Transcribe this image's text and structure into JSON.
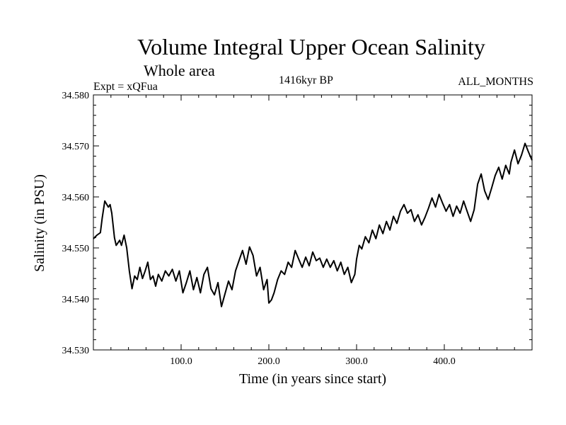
{
  "chart_data": {
    "type": "line",
    "title": "Volume Integral Upper Ocean Salinity",
    "subtitle": "Whole area",
    "experiment_label": "Expt = xQFua",
    "period_label": "1416kyr BP",
    "months_label": "ALL_MONTHS",
    "xlabel": "Time (in years since start)",
    "ylabel": "Salinity (in PSU)",
    "xlim": [
      0,
      500
    ],
    "ylim": [
      34.53,
      34.58
    ],
    "x_ticks": [
      100,
      200,
      300,
      400
    ],
    "x_tick_labels": [
      "100.0",
      "200.0",
      "300.0",
      "400.0"
    ],
    "y_ticks": [
      34.53,
      34.54,
      34.55,
      34.56,
      34.57,
      34.58
    ],
    "y_tick_labels": [
      "34.530",
      "34.540",
      "34.550",
      "34.560",
      "34.570",
      "34.580"
    ],
    "grid": false,
    "series": [
      {
        "name": "salinity",
        "x": [
          0,
          4,
          8,
          10,
          13,
          17,
          19,
          21,
          24,
          26,
          30,
          32,
          35,
          38,
          41,
          44,
          47,
          50,
          53,
          56,
          59,
          62,
          65,
          68,
          71,
          74,
          78,
          82,
          86,
          90,
          94,
          98,
          102,
          106,
          110,
          114,
          118,
          122,
          126,
          130,
          134,
          138,
          142,
          146,
          150,
          154,
          158,
          162,
          166,
          170,
          174,
          178,
          182,
          186,
          190,
          194,
          198,
          200,
          203,
          206,
          210,
          214,
          218,
          222,
          226,
          230,
          234,
          238,
          242,
          246,
          250,
          254,
          258,
          262,
          266,
          270,
          274,
          278,
          282,
          286,
          290,
          294,
          298,
          300,
          303,
          306,
          310,
          314,
          318,
          322,
          326,
          330,
          334,
          338,
          342,
          346,
          350,
          354,
          358,
          362,
          366,
          370,
          374,
          378,
          382,
          386,
          390,
          394,
          398,
          402,
          406,
          410,
          414,
          418,
          422,
          426,
          430,
          434,
          438,
          442,
          446,
          450,
          454,
          458,
          462,
          466,
          470,
          474,
          476,
          480,
          484,
          488,
          492,
          496,
          500
        ],
        "values": [
          34.5518,
          34.5525,
          34.553,
          34.5558,
          34.5592,
          34.558,
          34.5585,
          34.5568,
          34.552,
          34.5505,
          34.5515,
          34.5505,
          34.5525,
          34.55,
          34.5455,
          34.542,
          34.5445,
          34.5438,
          34.5462,
          34.544,
          34.5455,
          34.5472,
          34.5438,
          34.5445,
          34.5425,
          34.5448,
          34.5435,
          34.5455,
          34.5445,
          34.5458,
          34.5435,
          34.5455,
          34.5412,
          34.5432,
          34.5455,
          34.5418,
          34.5442,
          34.5412,
          34.5448,
          34.5462,
          34.542,
          34.5408,
          34.5432,
          34.5385,
          34.541,
          34.5435,
          34.5418,
          34.5455,
          34.5475,
          34.5495,
          34.5468,
          34.5502,
          34.5485,
          34.5445,
          34.5462,
          34.5418,
          34.5438,
          34.5392,
          34.5398,
          34.5412,
          34.5438,
          34.5455,
          34.5448,
          34.5472,
          34.5462,
          34.5495,
          34.5478,
          34.5462,
          34.5482,
          34.5465,
          34.5492,
          34.5475,
          34.548,
          34.5462,
          34.5478,
          34.5462,
          34.5475,
          34.5455,
          34.5472,
          34.5448,
          34.5462,
          34.5432,
          34.5448,
          34.5478,
          34.5505,
          34.5498,
          34.5522,
          34.551,
          34.5535,
          34.5518,
          34.5545,
          34.5528,
          34.5552,
          34.5535,
          34.5562,
          34.5548,
          34.5572,
          34.5585,
          34.5568,
          34.5575,
          34.5552,
          34.5565,
          34.5545,
          34.556,
          34.5578,
          34.5598,
          34.558,
          34.5605,
          34.5588,
          34.5572,
          34.5585,
          34.5562,
          34.5582,
          34.5568,
          34.5592,
          34.5572,
          34.5552,
          34.5575,
          34.5625,
          34.5645,
          34.5612,
          34.5595,
          34.5618,
          34.5642,
          34.5658,
          34.5635,
          34.5662,
          34.5645,
          34.5668,
          34.5692,
          34.5665,
          34.5682,
          34.5705,
          34.5688,
          34.5672
        ]
      }
    ]
  }
}
